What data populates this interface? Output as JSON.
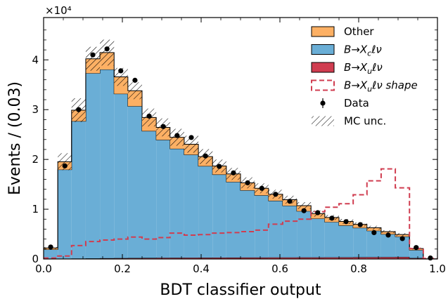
{
  "chart_data": {
    "type": "bar",
    "xlabel": "BDT classifier output",
    "ylabel": "Events / (0.03)",
    "y_multiplier": "×10⁴",
    "y_exponent": "4",
    "x_ticks": [
      "0.0",
      "0.2",
      "0.4",
      "0.6",
      "0.8",
      "1.0"
    ],
    "y_ticks": [
      "0",
      "1",
      "2",
      "3",
      "4"
    ],
    "xlim": [
      0.0,
      1.0
    ],
    "ylim": [
      0,
      4.85
    ],
    "legend_placement": "top-right",
    "bin_edges": [
      0.0,
      0.036,
      0.071,
      0.107,
      0.143,
      0.179,
      0.214,
      0.25,
      0.286,
      0.321,
      0.357,
      0.393,
      0.429,
      0.464,
      0.5,
      0.536,
      0.571,
      0.607,
      0.643,
      0.679,
      0.714,
      0.75,
      0.786,
      0.821,
      0.857,
      0.893,
      0.929,
      0.964,
      1.0
    ],
    "series": [
      {
        "name": "Other",
        "color": "#fdb064",
        "values": [
          0.03,
          0.16,
          0.22,
          0.29,
          0.34,
          0.34,
          0.31,
          0.27,
          0.25,
          0.23,
          0.21,
          0.19,
          0.17,
          0.16,
          0.15,
          0.14,
          0.13,
          0.12,
          0.11,
          0.1,
          0.09,
          0.08,
          0.07,
          0.06,
          0.05,
          0.04,
          0.03,
          0.0
        ]
      },
      {
        "name": "B→X_cℓν",
        "color": "#6aaed6",
        "values": [
          0.19,
          1.79,
          2.76,
          3.72,
          3.79,
          3.3,
          3.05,
          2.55,
          2.37,
          2.19,
          2.07,
          1.84,
          1.67,
          1.52,
          1.35,
          1.25,
          1.14,
          1.04,
          0.93,
          0.78,
          0.71,
          0.64,
          0.59,
          0.53,
          0.46,
          0.41,
          0.16,
          0.0
        ]
      },
      {
        "name": "B→X_uℓν",
        "color": "#d03d50",
        "values": [
          0.002,
          0.005,
          0.009,
          0.012,
          0.016,
          0.018,
          0.02,
          0.022,
          0.024,
          0.025,
          0.026,
          0.027,
          0.028,
          0.029,
          0.03,
          0.03,
          0.031,
          0.031,
          0.032,
          0.032,
          0.033,
          0.034,
          0.036,
          0.037,
          0.039,
          0.041,
          0.02,
          0.002
        ]
      }
    ],
    "shape": {
      "name": "B→X_uℓν shape",
      "color": "#d03d50",
      "values": [
        0.02,
        0.06,
        0.27,
        0.35,
        0.38,
        0.4,
        0.44,
        0.4,
        0.43,
        0.52,
        0.48,
        0.49,
        0.52,
        0.53,
        0.55,
        0.58,
        0.7,
        0.76,
        0.8,
        0.95,
        1.04,
        1.11,
        1.29,
        1.57,
        1.81,
        1.43,
        0.21,
        0.01
      ]
    },
    "data": {
      "name": "Data",
      "x": [
        0.018,
        0.054,
        0.089,
        0.125,
        0.161,
        0.196,
        0.232,
        0.268,
        0.304,
        0.339,
        0.375,
        0.411,
        0.446,
        0.482,
        0.518,
        0.554,
        0.589,
        0.625,
        0.661,
        0.696,
        0.732,
        0.768,
        0.804,
        0.839,
        0.875,
        0.911,
        0.946,
        0.982
      ],
      "y": [
        0.24,
        1.87,
        3.0,
        4.1,
        4.22,
        3.78,
        3.59,
        2.87,
        2.66,
        2.48,
        2.44,
        2.07,
        1.86,
        1.73,
        1.53,
        1.42,
        1.3,
        1.16,
        0.97,
        0.93,
        0.82,
        0.75,
        0.69,
        0.53,
        0.48,
        0.41,
        0.23,
        0.02
      ]
    },
    "mc_unc": {
      "name": "MC unc.",
      "values": [
        0.02,
        0.17,
        0.24,
        0.24,
        0.26,
        0.18,
        0.17,
        0.18,
        0.18,
        0.17,
        0.17,
        0.15,
        0.13,
        0.12,
        0.11,
        0.1,
        0.09,
        0.08,
        0.07,
        0.06,
        0.05,
        0.05,
        0.04,
        0.04,
        0.03,
        0.03,
        0.02,
        0.0
      ]
    }
  }
}
